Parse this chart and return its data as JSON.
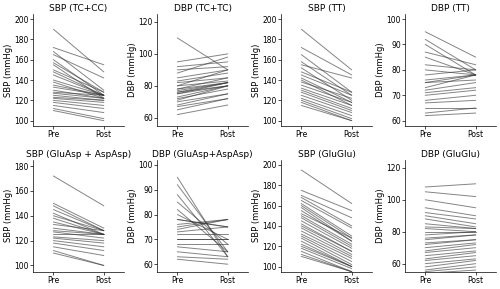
{
  "panels": [
    {
      "title": "SBP (TC+CC)",
      "ylabel": "SBP (mmHg)",
      "ylim": [
        95,
        205
      ],
      "yticks": [
        100,
        120,
        140,
        160,
        180,
        200
      ],
      "pre": [
        190,
        172,
        168,
        165,
        160,
        157,
        155,
        150,
        148,
        145,
        140,
        138,
        135,
        133,
        130,
        128,
        127,
        125,
        123,
        122,
        120,
        118,
        115,
        112,
        110
      ],
      "post": [
        148,
        155,
        130,
        142,
        125,
        128,
        122,
        128,
        125,
        125,
        125,
        122,
        125,
        125,
        122,
        125,
        122,
        120,
        120,
        118,
        115,
        112,
        108,
        102,
        100
      ]
    },
    {
      "title": "DBP (TC+TC)",
      "ylabel": "DBP (mmHg)",
      "ylim": [
        55,
        125
      ],
      "yticks": [
        60,
        80,
        100,
        120
      ],
      "pre": [
        110,
        95,
        92,
        90,
        88,
        85,
        83,
        82,
        80,
        80,
        78,
        78,
        77,
        76,
        76,
        75,
        75,
        73,
        72,
        71,
        70,
        68,
        67,
        65,
        62
      ],
      "post": [
        90,
        100,
        95,
        92,
        98,
        90,
        88,
        85,
        90,
        83,
        82,
        85,
        82,
        82,
        80,
        82,
        80,
        80,
        78,
        80,
        75,
        75,
        72,
        72,
        68
      ]
    },
    {
      "title": "SBP (TT)",
      "ylabel": "SBP (mmHg)",
      "ylim": [
        95,
        205
      ],
      "yticks": [
        100,
        120,
        140,
        160,
        180,
        200
      ],
      "pre": [
        190,
        172,
        165,
        158,
        155,
        152,
        148,
        145,
        142,
        140,
        138,
        135,
        132,
        130,
        128,
        125,
        122,
        120,
        118,
        115
      ],
      "post": [
        150,
        145,
        128,
        125,
        142,
        120,
        128,
        125,
        118,
        115,
        122,
        118,
        115,
        112,
        110,
        108,
        105,
        102,
        100,
        100
      ]
    },
    {
      "title": "DBP (TT)",
      "ylabel": "DBP (mmHg)",
      "ylim": [
        58,
        102
      ],
      "yticks": [
        60,
        70,
        80,
        90,
        100
      ],
      "pre": [
        95,
        92,
        90,
        87,
        85,
        82,
        80,
        78,
        76,
        75,
        75,
        73,
        72,
        71,
        70,
        68,
        67,
        65,
        63,
        62
      ],
      "post": [
        85,
        80,
        78,
        82,
        78,
        80,
        78,
        80,
        78,
        78,
        76,
        78,
        75,
        73,
        72,
        70,
        68,
        65,
        65,
        63
      ]
    },
    {
      "title": "SBP (GluAsp + AspAsp)",
      "ylabel": "SBP (mmHg)",
      "ylim": [
        95,
        185
      ],
      "yticks": [
        100,
        120,
        140,
        160,
        180
      ],
      "pre": [
        172,
        150,
        148,
        145,
        142,
        140,
        138,
        135,
        133,
        130,
        128,
        127,
        125,
        123,
        122,
        120,
        118,
        115,
        112,
        110
      ],
      "post": [
        148,
        130,
        128,
        128,
        125,
        128,
        125,
        125,
        128,
        125,
        125,
        122,
        125,
        120,
        118,
        115,
        112,
        108,
        100,
        100
      ]
    },
    {
      "title": "DBP (GluAsp+AspAsp)",
      "ylabel": "DBP (mmHg)",
      "ylim": [
        57,
        102
      ],
      "yticks": [
        60,
        70,
        80,
        90,
        100
      ],
      "pre": [
        95,
        92,
        88,
        85,
        82,
        80,
        78,
        78,
        76,
        75,
        74,
        73,
        72,
        70,
        70,
        68,
        67,
        65,
        63,
        62
      ],
      "post": [
        63,
        65,
        63,
        68,
        65,
        70,
        75,
        75,
        78,
        78,
        78,
        75,
        72,
        70,
        70,
        68,
        65,
        63,
        62,
        60
      ]
    },
    {
      "title": "SBP (GluGlu)",
      "ylabel": "SBP (mmHg)",
      "ylim": [
        95,
        205
      ],
      "yticks": [
        100,
        120,
        140,
        160,
        180,
        200
      ],
      "pre": [
        195,
        175,
        170,
        168,
        165,
        162,
        160,
        158,
        155,
        152,
        150,
        148,
        145,
        142,
        140,
        138,
        135,
        132,
        130,
        128,
        125,
        122,
        120,
        118,
        115,
        112,
        110
      ],
      "post": [
        162,
        155,
        148,
        140,
        138,
        130,
        128,
        125,
        125,
        128,
        122,
        120,
        118,
        115,
        115,
        112,
        110,
        108,
        105,
        102,
        100,
        100,
        100,
        98,
        95,
        95,
        95
      ]
    },
    {
      "title": "DBP (GluGlu)",
      "ylabel": "DBP (mmHg)",
      "ylim": [
        55,
        125
      ],
      "yticks": [
        60,
        80,
        100,
        120
      ],
      "pre": [
        108,
        105,
        100,
        95,
        92,
        90,
        88,
        85,
        83,
        82,
        80,
        78,
        76,
        75,
        73,
        72,
        70,
        68,
        67,
        65,
        63,
        62,
        60,
        58,
        56,
        55,
        54
      ],
      "post": [
        110,
        102,
        95,
        90,
        88,
        85,
        83,
        82,
        82,
        80,
        80,
        80,
        78,
        78,
        75,
        75,
        73,
        72,
        70,
        68,
        67,
        65,
        63,
        62,
        60,
        58,
        56
      ]
    }
  ],
  "line_color": "#333333",
  "line_alpha": 0.6,
  "line_width": 0.7,
  "bg_color": "#ffffff",
  "tick_fontsize": 5.5,
  "label_fontsize": 6,
  "title_fontsize": 6.5
}
